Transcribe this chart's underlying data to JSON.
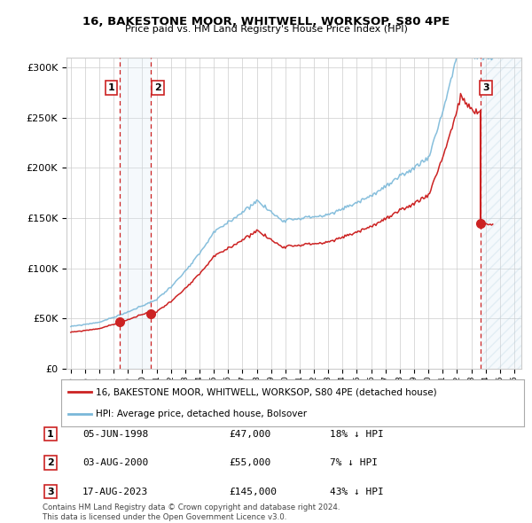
{
  "title": "16, BAKESTONE MOOR, WHITWELL, WORKSOP, S80 4PE",
  "subtitle": "Price paid vs. HM Land Registry's House Price Index (HPI)",
  "sale_dates": [
    "1998-06-05",
    "2000-08-03",
    "2023-08-17"
  ],
  "sale_prices": [
    47000,
    55000,
    145000
  ],
  "sale_labels": [
    "1",
    "2",
    "3"
  ],
  "hpi_color": "#7ab8d9",
  "price_color": "#cc2222",
  "highlight_color_solid": "#daeaf4",
  "vline_color": "#cc2222",
  "ylim": [
    0,
    310000
  ],
  "yticks": [
    0,
    50000,
    100000,
    150000,
    200000,
    250000,
    300000
  ],
  "legend_label_price": "16, BAKESTONE MOOR, WHITWELL, WORKSOP, S80 4PE (detached house)",
  "legend_label_hpi": "HPI: Average price, detached house, Bolsover",
  "table_data": [
    [
      "1",
      "05-JUN-1998",
      "£47,000",
      "18% ↓ HPI"
    ],
    [
      "2",
      "03-AUG-2000",
      "£55,000",
      "7% ↓ HPI"
    ],
    [
      "3",
      "17-AUG-2023",
      "£145,000",
      "43% ↓ HPI"
    ]
  ],
  "footer": "Contains HM Land Registry data © Crown copyright and database right 2024.\nThis data is licensed under the Open Government Licence v3.0.",
  "background_color": "#ffffff",
  "grid_color": "#cccccc",
  "sale_year_nums": [
    1998.42,
    2000.58,
    2023.62
  ],
  "hpi_start_year": 1995.0,
  "hpi_end_year": 2026.0,
  "xlim": [
    1994.7,
    2026.5
  ],
  "xtick_years": [
    1995,
    1996,
    1997,
    1998,
    1999,
    2000,
    2001,
    2002,
    2003,
    2004,
    2005,
    2006,
    2007,
    2008,
    2009,
    2010,
    2011,
    2012,
    2013,
    2014,
    2015,
    2016,
    2017,
    2018,
    2019,
    2020,
    2021,
    2022,
    2023,
    2024,
    2025,
    2026
  ]
}
